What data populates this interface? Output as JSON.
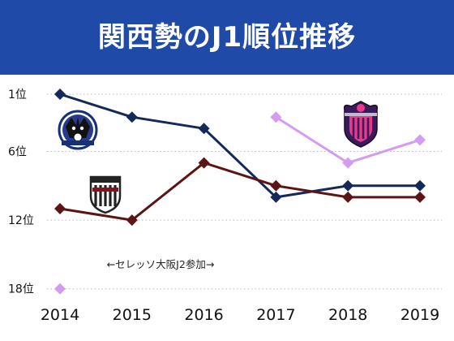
{
  "title": "関西勢のJ1順位推移",
  "chart_data": {
    "type": "line",
    "title": "関西勢のJ1順位推移",
    "x": [
      "2014",
      "2015",
      "2016",
      "2017",
      "2018",
      "2019"
    ],
    "y_ticks": [
      {
        "value": 1,
        "label": "1位"
      },
      {
        "value": 6,
        "label": "6位"
      },
      {
        "value": 12,
        "label": "12位"
      },
      {
        "value": 18,
        "label": "18位"
      }
    ],
    "ylim": [
      1,
      18
    ],
    "y_inverted": true,
    "grid": "dotted horizontal",
    "series": [
      {
        "logo": "gamba-osaka-crest",
        "color": "#14285a",
        "values": [
          1,
          3,
          4,
          10,
          9,
          9
        ]
      },
      {
        "logo": "vissel-kobe-crest",
        "color": "#5c1414",
        "values": [
          11,
          12,
          7,
          9,
          10,
          10
        ]
      },
      {
        "logo": "cerezo-osaka-crest",
        "color": "#d49cf0",
        "values": [
          18,
          null,
          null,
          3,
          7,
          5
        ]
      }
    ],
    "annotation": "←セレッソ大阪J2参加→"
  }
}
